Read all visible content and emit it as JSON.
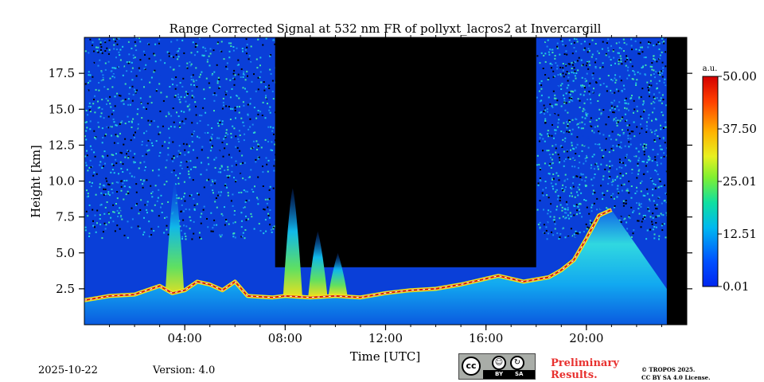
{
  "chart_data": {
    "type": "heatmap",
    "title": "Range Corrected Signal at 532 nm FR of pollyxt_lacros2 at Invercargill",
    "xlabel": "Time [UTC]",
    "ylabel": "Height [km]",
    "x_range_hours": [
      0,
      24
    ],
    "y_range_km": [
      0,
      20
    ],
    "x_ticks": [
      {
        "value": 4,
        "label": "04:00"
      },
      {
        "value": 8,
        "label": "08:00"
      },
      {
        "value": 12,
        "label": "12:00"
      },
      {
        "value": 16,
        "label": "16:00"
      },
      {
        "value": 20,
        "label": "20:00"
      }
    ],
    "y_ticks": [
      {
        "value": 2.5,
        "label": "2.5"
      },
      {
        "value": 5.0,
        "label": "5.0"
      },
      {
        "value": 7.5,
        "label": "7.5"
      },
      {
        "value": 10.0,
        "label": "10.0"
      },
      {
        "value": 12.5,
        "label": "12.5"
      },
      {
        "value": 15.0,
        "label": "15.0"
      },
      {
        "value": 17.5,
        "label": "17.5"
      }
    ],
    "colorbar": {
      "unit": "a.u.",
      "min": 0.01,
      "max": 50.0,
      "ticks": [
        {
          "value": 0.01,
          "label": "0.01"
        },
        {
          "value": 12.51,
          "label": "12.51"
        },
        {
          "value": 25.01,
          "label": "25.01"
        },
        {
          "value": 37.5,
          "label": "37.50"
        },
        {
          "value": 50.0,
          "label": "50.00"
        }
      ],
      "colormap": "jet"
    },
    "no_data_periods_hours": [
      [
        7.6,
        18.0
      ],
      [
        23.2,
        24.0
      ]
    ],
    "noise_periods_hours": [
      [
        0.0,
        7.6
      ],
      [
        18.0,
        23.2
      ]
    ],
    "boundary_layer_top_km": [
      [
        0.0,
        1.7
      ],
      [
        1.0,
        2.0
      ],
      [
        2.0,
        2.1
      ],
      [
        3.0,
        2.7
      ],
      [
        3.5,
        2.2
      ],
      [
        4.0,
        2.4
      ],
      [
        4.5,
        3.0
      ],
      [
        5.0,
        2.8
      ],
      [
        5.5,
        2.4
      ],
      [
        6.0,
        3.0
      ],
      [
        6.5,
        2.0
      ],
      [
        7.5,
        1.9
      ],
      [
        8.0,
        2.0
      ],
      [
        9.0,
        1.9
      ],
      [
        10.0,
        2.0
      ],
      [
        11.0,
        1.9
      ],
      [
        12.0,
        2.2
      ],
      [
        13.0,
        2.4
      ],
      [
        14.0,
        2.5
      ],
      [
        15.0,
        2.8
      ],
      [
        16.0,
        3.2
      ],
      [
        16.5,
        3.4
      ],
      [
        17.5,
        3.0
      ],
      [
        18.5,
        3.3
      ],
      [
        19.0,
        3.8
      ],
      [
        19.5,
        4.5
      ],
      [
        20.0,
        6.0
      ],
      [
        20.5,
        7.6
      ],
      [
        21.0,
        8.0
      ]
    ],
    "aerosol_plumes": [
      {
        "time_h": 8.3,
        "top_km": 9.5
      },
      {
        "time_h": 9.3,
        "top_km": 6.5
      },
      {
        "time_h": 10.1,
        "top_km": 5.0
      },
      {
        "time_h": 3.6,
        "top_km": 10.0
      }
    ]
  },
  "footer": {
    "date": "2025-10-22",
    "version": "Version: 4.0",
    "preliminary": "Preliminary Results.",
    "copyright_line1": "© TROPOS 2025.",
    "copyright_line2": "CC BY SA 4.0 License.",
    "cc_label": "cc",
    "cc_by": "BY",
    "cc_sa": "SA"
  },
  "colors": {
    "no_data": "#000000",
    "background_low": "#0a3fd8",
    "high": "#d21a0f"
  }
}
